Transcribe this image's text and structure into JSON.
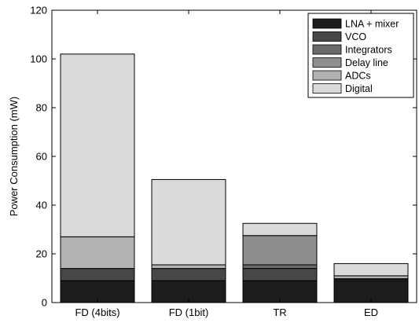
{
  "chart_data": {
    "type": "bar",
    "stacked": true,
    "categories": [
      "FD (4bits)",
      "FD (1bit)",
      "TR",
      "ED"
    ],
    "series": [
      {
        "name": "LNA + mixer",
        "color": "#1c1c1c",
        "values": [
          9,
          9,
          9,
          9
        ]
      },
      {
        "name": "VCO",
        "color": "#474747",
        "values": [
          5,
          5,
          5,
          0.6
        ]
      },
      {
        "name": "Integrators",
        "color": "#6a6a6a",
        "values": [
          0,
          0,
          1.5,
          0.2
        ]
      },
      {
        "name": "Delay line",
        "color": "#8e8e8e",
        "values": [
          0,
          0,
          12,
          0
        ]
      },
      {
        "name": "ADCs",
        "color": "#b2b2b2",
        "values": [
          13,
          1.5,
          0,
          1.2
        ]
      },
      {
        "name": "Digital",
        "color": "#dadada",
        "values": [
          75,
          35,
          5,
          5
        ]
      }
    ],
    "ylabel": "Power Consumption (mW)",
    "xlabel": "",
    "ylim": [
      0,
      120
    ],
    "yticks": [
      0,
      20,
      40,
      60,
      80,
      100,
      120
    ],
    "grid": false,
    "legend_position": "top-right"
  }
}
